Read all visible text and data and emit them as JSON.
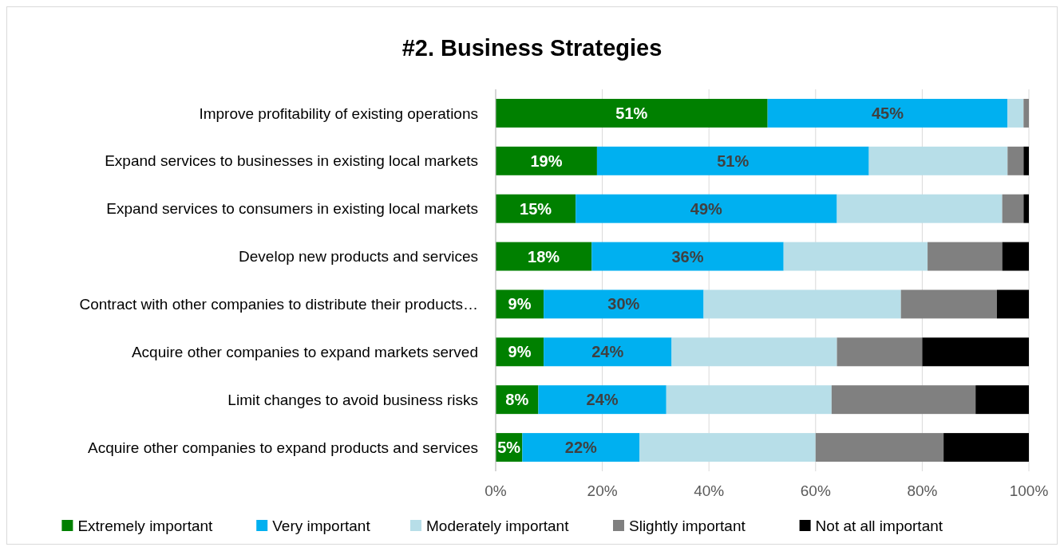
{
  "chart_data": {
    "type": "bar",
    "orientation": "horizontal",
    "stacked": true,
    "title": "#2. Business Strategies",
    "categories": [
      "Improve profitability of existing operations",
      "Expand services to businesses in existing local markets",
      "Expand services to consumers in existing local markets",
      "Develop new products and services",
      "Contract with other companies to distribute their products…",
      "Acquire other companies to expand markets served",
      "Limit changes to avoid business risks",
      "Acquire other companies to expand products and services"
    ],
    "series": [
      {
        "name": "Extremely important",
        "color": "#008000",
        "values": [
          51,
          19,
          15,
          18,
          9,
          9,
          8,
          5
        ],
        "value_labels": [
          "51%",
          "19%",
          "15%",
          "18%",
          "9%",
          "9%",
          "8%",
          "5%"
        ]
      },
      {
        "name": "Very important",
        "color": "#00b0f0",
        "values": [
          45,
          51,
          49,
          36,
          30,
          24,
          24,
          22
        ],
        "value_labels": [
          "45%",
          "51%",
          "49%",
          "36%",
          "30%",
          "24%",
          "24%",
          "22%"
        ]
      },
      {
        "name": "Moderately important",
        "color": "#b7dee8",
        "values": [
          3,
          26,
          31,
          27,
          37,
          31,
          31,
          33
        ]
      },
      {
        "name": "Slightly important",
        "color": "#808080",
        "values": [
          1,
          3,
          4,
          14,
          18,
          16,
          27,
          24
        ]
      },
      {
        "name": "Not at all important",
        "color": "#000000",
        "values": [
          0,
          1,
          1,
          5,
          6,
          20,
          10,
          16
        ]
      }
    ],
    "xlim": [
      0,
      100
    ],
    "xticks": [
      {
        "value": 0,
        "label": "0%"
      },
      {
        "value": 20,
        "label": "20%"
      },
      {
        "value": 40,
        "label": "40%"
      },
      {
        "value": 60,
        "label": "60%"
      },
      {
        "value": 80,
        "label": "80%"
      },
      {
        "value": 100,
        "label": "100%"
      }
    ],
    "grid": "x",
    "legend": "bottom"
  }
}
